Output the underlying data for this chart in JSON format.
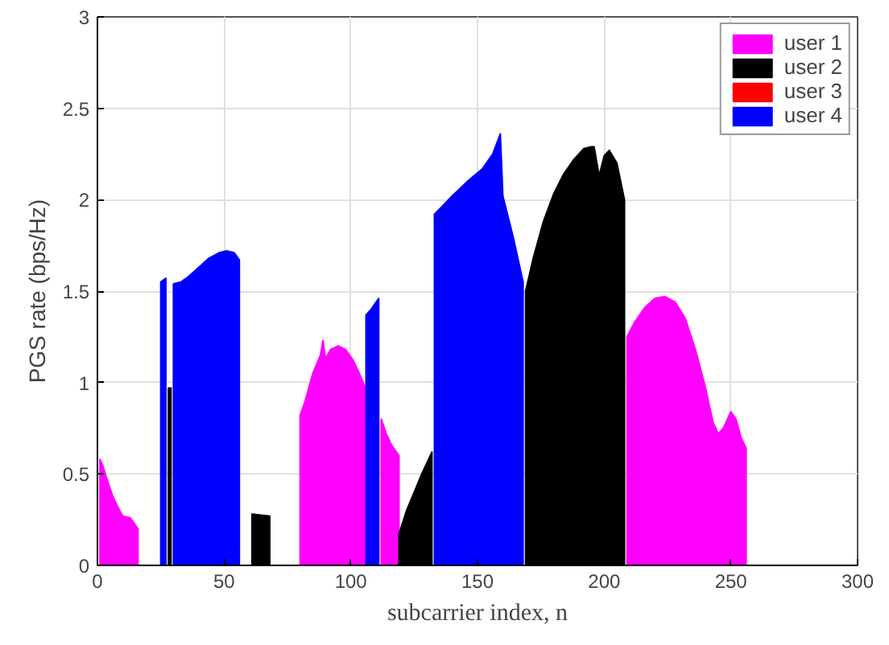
{
  "chart_data": {
    "type": "area",
    "xlabel": "subcarrier index, n",
    "ylabel": "PGS rate (bps/Hz)",
    "xlim": [
      0,
      300
    ],
    "ylim": [
      0,
      3
    ],
    "xticks": [
      0,
      50,
      100,
      150,
      200,
      250,
      300
    ],
    "yticks": [
      0,
      0.5,
      1,
      1.5,
      2,
      2.5,
      3
    ],
    "grid": true,
    "legend": "top right",
    "series": [
      {
        "name": "user 1",
        "color": "#ff00ff",
        "x": [
          1,
          2,
          4,
          6,
          8,
          10,
          13,
          15,
          16,
          null,
          80,
          82,
          85,
          88,
          89,
          90,
          92,
          95,
          98,
          101,
          104,
          106,
          null,
          112,
          114,
          116,
          118,
          119,
          null,
          209,
          212,
          216,
          220,
          224,
          228,
          232,
          236,
          240,
          243,
          245,
          247,
          250,
          252,
          254,
          256
        ],
        "values": [
          0.58,
          0.55,
          0.46,
          0.38,
          0.32,
          0.27,
          0.26,
          0.22,
          0.2,
          null,
          0.82,
          0.9,
          1.05,
          1.15,
          1.23,
          1.13,
          1.18,
          1.2,
          1.18,
          1.12,
          1.03,
          0.96,
          null,
          0.8,
          0.72,
          0.66,
          0.62,
          0.6,
          null,
          1.25,
          1.33,
          1.41,
          1.46,
          1.47,
          1.44,
          1.35,
          1.18,
          0.97,
          0.78,
          0.72,
          0.75,
          0.84,
          0.8,
          0.7,
          0.64
        ]
      },
      {
        "name": "user 2",
        "color": "#000000",
        "x": [
          28,
          29,
          null,
          61,
          68,
          null,
          119,
          122,
          125,
          128,
          132,
          null,
          169,
          172,
          176,
          180,
          184,
          188,
          192,
          195,
          196,
          198,
          200,
          202,
          205,
          208
        ],
        "values": [
          0.97,
          0.97,
          null,
          0.28,
          0.27,
          null,
          0.17,
          0.3,
          0.4,
          0.5,
          0.62,
          null,
          1.5,
          1.68,
          1.88,
          2.03,
          2.14,
          2.22,
          2.28,
          2.29,
          2.29,
          2.13,
          2.24,
          2.27,
          2.2,
          2.0
        ]
      },
      {
        "name": "user 3",
        "color": "#ff0000"
      },
      {
        "name": "user 4",
        "color": "#0000ff",
        "x": [
          25,
          27,
          null,
          30,
          33,
          36,
          40,
          44,
          48,
          51,
          54,
          56,
          null,
          106,
          108,
          110,
          111,
          null,
          133,
          140,
          146,
          152,
          156,
          159,
          160,
          164,
          168
        ],
        "values": [
          1.55,
          1.57,
          null,
          1.54,
          1.55,
          1.58,
          1.63,
          1.68,
          1.71,
          1.72,
          1.71,
          1.67,
          null,
          1.37,
          1.4,
          1.44,
          1.46,
          null,
          1.92,
          2.02,
          2.1,
          2.17,
          2.25,
          2.36,
          2.02,
          1.8,
          1.55
        ]
      }
    ]
  }
}
